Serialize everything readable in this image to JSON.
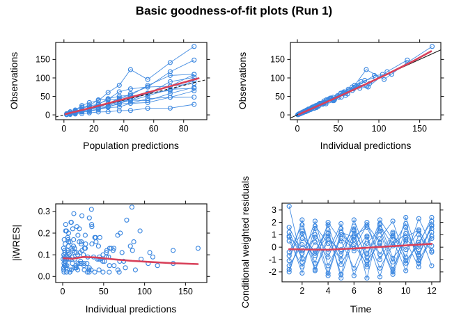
{
  "chart_data": {
    "type": "scatter",
    "title": "Basic goodness-of-fit plots (Run 1)",
    "layout": {
      "grid": false,
      "legend": "none",
      "panels_arrangement": "2x2"
    },
    "colors": {
      "point": "#3b87e0",
      "subject_line": "#3b87e0",
      "smooth_line": "#d8415a",
      "identity_line": "#1a1a1a",
      "box": "#1a1a1a",
      "text": "#000000",
      "background": "#ffffff"
    },
    "times": [
      1,
      2,
      3,
      4,
      5,
      6,
      7,
      8,
      9,
      10,
      11,
      12
    ],
    "population_predictions": [
      1.8,
      4.2,
      7.6,
      12,
      17,
      23,
      29.5,
      37,
      44.5,
      56,
      71,
      87
    ],
    "subjects": [
      {
        "id": 1,
        "slope": 0.3,
        "eps": [
          0.1,
          -0.06,
          0.04,
          -0.12,
          0.08,
          0.15,
          -0.05,
          0.02,
          -0.1,
          0.06,
          -0.14,
          0.09
        ],
        "iwres": [
          0.08,
          0.03,
          0.12,
          0.21,
          0.05,
          0.14,
          0.02,
          0.09,
          0.17,
          0.04,
          0.11,
          0.06
        ],
        "cwres": [
          3.3,
          -1.2,
          0.4,
          -0.8,
          1.5,
          -0.3,
          0.9,
          -1.7,
          0.2,
          1.1,
          -0.6,
          1.8
        ]
      },
      {
        "id": 2,
        "slope": 0.62,
        "eps": [
          -0.08,
          0.12,
          -0.03,
          0.07,
          -0.15,
          0.04,
          0.1,
          -0.07,
          0.13,
          -0.04,
          0.08,
          -0.11
        ],
        "iwres": [
          0.13,
          0.07,
          0.02,
          0.16,
          0.25,
          0.04,
          0.1,
          0.06,
          0.19,
          0.03,
          0.08,
          0.12
        ],
        "cwres": [
          -0.7,
          1.3,
          -1.9,
          0.6,
          -0.2,
          1.7,
          -1.1,
          0.3,
          -2.2,
          0.8,
          1.4,
          -0.4
        ]
      },
      {
        "id": 3,
        "slope": 0.72,
        "eps": [
          0.05,
          -0.1,
          0.14,
          -0.06,
          0.02,
          -0.13,
          0.07,
          0.11,
          -0.02,
          0.09,
          -0.07,
          0.04
        ],
        "iwres": [
          0.04,
          0.15,
          0.09,
          0.02,
          0.22,
          0.11,
          0.06,
          0.13,
          0.03,
          0.18,
          0.07,
          0.05
        ],
        "cwres": [
          1.6,
          -0.5,
          0.8,
          -2.3,
          1.0,
          0.2,
          -1.4,
          1.9,
          -0.9,
          0.5,
          -1.6,
          1.2
        ]
      },
      {
        "id": 4,
        "slope": 0.8,
        "eps": [
          -0.12,
          0.03,
          -0.08,
          0.1,
          0.16,
          -0.04,
          -0.09,
          0.05,
          0.12,
          -0.14,
          0.02,
          0.07
        ],
        "iwres": [
          0.1,
          0.05,
          0.18,
          0.08,
          0.29,
          0.03,
          0.12,
          0.06,
          0.15,
          0.09,
          0.02,
          0.07
        ],
        "cwres": [
          -1.8,
          0.7,
          -0.3,
          1.4,
          -2.5,
          0.9,
          1.6,
          -0.6,
          1.1,
          -1.3,
          0.4,
          2.1
        ]
      },
      {
        "id": 5,
        "slope": 0.88,
        "eps": [
          0.07,
          -0.14,
          0.09,
          0.03,
          -0.05,
          0.12,
          -0.1,
          0.15,
          -0.03,
          0.05,
          0.11,
          -0.06
        ],
        "iwres": [
          0.06,
          0.24,
          0.11,
          0.03,
          0.08,
          0.16,
          0.05,
          0.27,
          0.02,
          0.1,
          0.13,
          0.04
        ],
        "cwres": [
          0.9,
          -2.1,
          1.7,
          0.3,
          -1.0,
          2.2,
          -0.5,
          1.3,
          -1.8,
          0.6,
          -0.2,
          1.5
        ]
      },
      {
        "id": 6,
        "slope": 0.95,
        "eps": [
          -0.04,
          0.08,
          -0.12,
          0.14,
          -0.07,
          0.03,
          0.09,
          -0.15,
          0.06,
          0.1,
          -0.02,
          0.13
        ],
        "iwres": [
          0.02,
          0.09,
          0.2,
          0.13,
          0.05,
          0.07,
          0.15,
          0.31,
          0.08,
          0.11,
          0.03,
          0.14
        ],
        "cwres": [
          -0.4,
          1.8,
          -1.3,
          2.0,
          0.5,
          -1.7,
          0.8,
          -2.4,
          1.2,
          -0.8,
          2.3,
          0.1
        ]
      },
      {
        "id": 7,
        "slope": 1.02,
        "eps": [
          0.11,
          -0.05,
          0.06,
          -0.09,
          0.13,
          -0.16,
          0.04,
          0.08,
          -0.12,
          0.03,
          0.07,
          -0.04
        ],
        "iwres": [
          0.17,
          0.04,
          0.08,
          0.12,
          0.23,
          0.28,
          0.02,
          0.09,
          0.18,
          0.05,
          0.11,
          0.03
        ],
        "cwres": [
          1.2,
          -0.9,
          2.1,
          -1.5,
          0.7,
          -0.1,
          1.8,
          0.4,
          -2.0,
          1.6,
          -1.1,
          0.9
        ]
      },
      {
        "id": 8,
        "slope": 1.1,
        "eps": [
          -0.09,
          0.13,
          0.02,
          -0.11,
          0.05,
          0.08,
          -0.06,
          0.12,
          0.04,
          -0.08,
          0.15,
          0.06
        ],
        "iwres": [
          0.09,
          0.21,
          0.03,
          0.14,
          0.06,
          0.1,
          0.04,
          0.16,
          0.07,
          0.12,
          0.26,
          0.08
        ],
        "cwres": [
          -1.5,
          0.2,
          -0.7,
          1.1,
          -2.2,
          1.4,
          -0.8,
          2.2,
          0.6,
          -1.9,
          1.0,
          -0.3
        ]
      },
      {
        "id": 9,
        "slope": 1.2,
        "eps": [
          0.03,
          -0.07,
          0.11,
          0.06,
          -0.13,
          0.09,
          0.14,
          -0.04,
          0.08,
          0.12,
          -0.09,
          0.05
        ],
        "iwres": [
          0.05,
          0.08,
          0.16,
          0.11,
          0.22,
          0.13,
          0.24,
          0.03,
          0.09,
          0.19,
          0.12,
          0.06
        ],
        "cwres": [
          0.5,
          -1.6,
          1.0,
          -0.4,
          1.9,
          -2.3,
          0.3,
          1.5,
          -1.2,
          2.4,
          -0.7,
          1.7
        ]
      },
      {
        "id": 10,
        "slope": 1.33,
        "eps": [
          -0.06,
          0.09,
          -0.14,
          0.04,
          0.1,
          -0.08,
          0.12,
          0.03,
          -0.11,
          0.07,
          0.13,
          -0.05
        ],
        "iwres": [
          0.08,
          0.12,
          0.25,
          0.04,
          0.15,
          0.09,
          0.18,
          0.02,
          0.13,
          0.07,
          0.21,
          0.05
        ],
        "cwres": [
          -2.0,
          1.1,
          -0.5,
          1.8,
          -1.4,
          0.6,
          2.0,
          -1.0,
          0.9,
          -0.2,
          1.3,
          -1.5
        ]
      },
      {
        "id": 11,
        "slope": 1.55,
        "eps": [
          0.08,
          -0.11,
          0.05,
          0.12,
          -0.04,
          0.14,
          -0.07,
          0.09,
          0.02,
          -0.13,
          0.06,
          0.1
        ],
        "iwres": [
          0.11,
          0.17,
          0.06,
          0.19,
          0.03,
          0.23,
          0.08,
          0.13,
          0.02,
          0.16,
          0.09,
          0.12
        ],
        "cwres": [
          0.8,
          -0.3,
          1.5,
          -2.1,
          1.2,
          0.8,
          -1.6,
          0.7,
          2.1,
          -1.1,
          0.2,
          2.4
        ]
      },
      {
        "id": 12,
        "slope": 1.9,
        "eps": [
          -0.05,
          0.07,
          -0.09,
          0.11,
          0.03,
          -0.12,
          0.08,
          0.14,
          0.45,
          -0.1,
          0.05,
          0.12
        ],
        "iwres": [
          0.07,
          0.1,
          0.13,
          0.16,
          0.02,
          0.14,
          0.09,
          0.2,
          0.32,
          0.11,
          0.06,
          0.13
        ],
        "cwres": [
          -1.1,
          2.2,
          -1.8,
          0.9,
          -0.6,
          1.3,
          -2.5,
          1.8,
          0.1,
          1.9,
          -1.3,
          0.7
        ]
      }
    ],
    "panels": [
      {
        "key": "obs-vs-pred",
        "type": "scatter",
        "xlabel": "Population predictions",
        "ylabel": "Observations",
        "x_source": "pred",
        "y_source": "obs",
        "connect": true,
        "xlim": [
          -5.5,
          95.5
        ],
        "ylim": [
          -13,
          196
        ],
        "xticks": [
          0,
          20,
          40,
          60,
          80
        ],
        "xtick_labels": [
          "0",
          "20",
          "40",
          "60",
          "80"
        ],
        "yticks": [
          0,
          50,
          100,
          150
        ],
        "ytick_labels": [
          "0",
          "50",
          "100",
          "150"
        ],
        "identity": {
          "show": true,
          "style": "dashed"
        },
        "smooth": [
          [
            1,
            2
          ],
          [
            15,
            16
          ],
          [
            30,
            32
          ],
          [
            45,
            48
          ],
          [
            60,
            65
          ],
          [
            75,
            82
          ],
          [
            90,
            99
          ]
        ]
      },
      {
        "key": "obs-vs-ipred",
        "type": "scatter",
        "xlabel": "Individual predictions",
        "ylabel": "Observations",
        "x_source": "ipred",
        "y_source": "obs",
        "connect": true,
        "xlim": [
          -8.5,
          176
        ],
        "ylim": [
          -13,
          196
        ],
        "xticks": [
          0,
          50,
          100,
          150
        ],
        "xtick_labels": [
          "0",
          "50",
          "100",
          "150"
        ],
        "yticks": [
          0,
          50,
          100,
          150
        ],
        "ytick_labels": [
          "0",
          "50",
          "100",
          "150"
        ],
        "identity": {
          "show": true,
          "style": "solid"
        },
        "smooth": [
          [
            2,
            1.5
          ],
          [
            40,
            39
          ],
          [
            80,
            79
          ],
          [
            110,
            110
          ],
          [
            140,
            143
          ],
          [
            164,
            172
          ]
        ]
      },
      {
        "key": "iwres-vs-ipred",
        "type": "scatter",
        "xlabel": "Individual predictions",
        "ylabel": "|iWRES|",
        "x_source": "ipred",
        "y_source": "iwres",
        "connect": false,
        "xlim": [
          -8.5,
          176
        ],
        "ylim": [
          -0.028,
          0.335
        ],
        "xticks": [
          0,
          50,
          100,
          150
        ],
        "xtick_labels": [
          "0",
          "50",
          "100",
          "150"
        ],
        "yticks": [
          0,
          0.1,
          0.2,
          0.3
        ],
        "ytick_labels": [
          "0.0",
          "0.1",
          "0.2",
          "0.3"
        ],
        "identity": {
          "show": false,
          "style": "none"
        },
        "smooth": [
          [
            1,
            0.084
          ],
          [
            12,
            0.082
          ],
          [
            25,
            0.09
          ],
          [
            40,
            0.088
          ],
          [
            60,
            0.08
          ],
          [
            85,
            0.072
          ],
          [
            110,
            0.066
          ],
          [
            135,
            0.061
          ],
          [
            165,
            0.057
          ]
        ]
      },
      {
        "key": "cwres-vs-time",
        "type": "scatter",
        "xlabel": "Time",
        "ylabel": "Conditional weighted residuals",
        "x_source": "time",
        "y_source": "cwres",
        "connect": true,
        "xlim": [
          0.45,
          12.65
        ],
        "ylim": [
          -2.8,
          3.55
        ],
        "xticks": [
          2,
          4,
          6,
          8,
          10,
          12
        ],
        "xtick_labels": [
          "2",
          "4",
          "6",
          "8",
          "10",
          "12"
        ],
        "yticks": [
          -2,
          -1,
          0,
          1,
          2,
          3
        ],
        "ytick_labels": [
          "-2",
          "-1",
          "0",
          "1",
          "2",
          "3"
        ],
        "identity": {
          "show": false,
          "style": "none"
        },
        "smooth": [
          [
            1,
            -0.17
          ],
          [
            2.5,
            -0.2
          ],
          [
            4,
            -0.21
          ],
          [
            5.5,
            -0.13
          ],
          [
            7,
            -0.05
          ],
          [
            8.5,
            0.05
          ],
          [
            10,
            0.14
          ],
          [
            11,
            0.2
          ],
          [
            12,
            0.27
          ]
        ]
      }
    ]
  }
}
